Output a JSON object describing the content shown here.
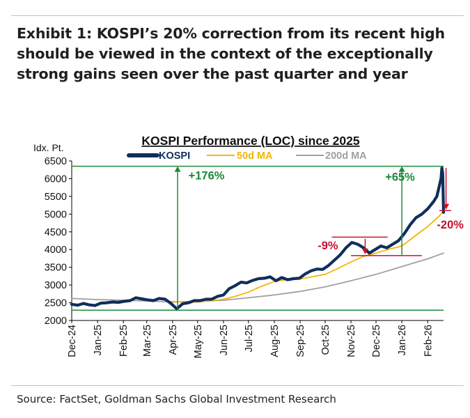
{
  "exhibit_title": "Exhibit 1: KOSPI’s 20% correction from its recent high should be viewed in the context of the exceptionally strong gains seen over the past quarter and year",
  "source": "Source: FactSet, Goldman Sachs Global Investment Research",
  "colors": {
    "kospi": "#0f2e5a",
    "ma50": "#f2b705",
    "ma200": "#a0a0a0",
    "green": "#1e8a3a",
    "red": "#c8102e"
  },
  "chart_data": {
    "type": "line",
    "title": "KOSPI Performance (LOC) since 2025",
    "ylabel": "Idx. Pt.",
    "ylim": [
      2000,
      6500
    ],
    "yticks": [
      2000,
      2500,
      3000,
      3500,
      4000,
      4500,
      5000,
      5500,
      6000,
      6500
    ],
    "xlim": [
      "2024-12-01",
      "2026-02-20"
    ],
    "xticks": [
      {
        "date": "2024-12-01",
        "label": "Dec-24"
      },
      {
        "date": "2025-01-01",
        "label": "Jan-25"
      },
      {
        "date": "2025-02-01",
        "label": "Feb-25"
      },
      {
        "date": "2025-03-01",
        "label": "Mar-25"
      },
      {
        "date": "2025-04-01",
        "label": "Apr-25"
      },
      {
        "date": "2025-05-01",
        "label": "May-25"
      },
      {
        "date": "2025-06-01",
        "label": "Jun-25"
      },
      {
        "date": "2025-07-01",
        "label": "Jul-25"
      },
      {
        "date": "2025-08-01",
        "label": "Aug-25"
      },
      {
        "date": "2025-09-01",
        "label": "Sep-25"
      },
      {
        "date": "2025-10-01",
        "label": "Oct-25"
      },
      {
        "date": "2025-11-01",
        "label": "Nov-25"
      },
      {
        "date": "2025-12-01",
        "label": "Dec-25"
      },
      {
        "date": "2026-01-01",
        "label": "Jan-26"
      },
      {
        "date": "2026-02-01",
        "label": "Feb-26"
      }
    ],
    "grid": false,
    "legend_position": "top",
    "series": [
      {
        "name": "KOSPI",
        "color": "#0f2e5a",
        "points": [
          [
            "2024-12-01",
            2455
          ],
          [
            "2024-12-08",
            2430
          ],
          [
            "2024-12-15",
            2480
          ],
          [
            "2024-12-22",
            2440
          ],
          [
            "2024-12-29",
            2420
          ],
          [
            "2025-01-05",
            2490
          ],
          [
            "2025-01-12",
            2500
          ],
          [
            "2025-01-19",
            2520
          ],
          [
            "2025-01-26",
            2510
          ],
          [
            "2025-02-02",
            2540
          ],
          [
            "2025-02-09",
            2560
          ],
          [
            "2025-02-16",
            2640
          ],
          [
            "2025-02-23",
            2610
          ],
          [
            "2025-03-02",
            2580
          ],
          [
            "2025-03-09",
            2560
          ],
          [
            "2025-03-16",
            2620
          ],
          [
            "2025-03-23",
            2600
          ],
          [
            "2025-03-30",
            2480
          ],
          [
            "2025-04-06",
            2330
          ],
          [
            "2025-04-13",
            2470
          ],
          [
            "2025-04-20",
            2500
          ],
          [
            "2025-04-27",
            2560
          ],
          [
            "2025-05-04",
            2560
          ],
          [
            "2025-05-11",
            2600
          ],
          [
            "2025-05-18",
            2600
          ],
          [
            "2025-05-25",
            2680
          ],
          [
            "2025-06-01",
            2720
          ],
          [
            "2025-06-08",
            2900
          ],
          [
            "2025-06-15",
            2980
          ],
          [
            "2025-06-22",
            3080
          ],
          [
            "2025-06-29",
            3060
          ],
          [
            "2025-07-06",
            3130
          ],
          [
            "2025-07-13",
            3180
          ],
          [
            "2025-07-20",
            3190
          ],
          [
            "2025-07-27",
            3230
          ],
          [
            "2025-08-03",
            3120
          ],
          [
            "2025-08-10",
            3210
          ],
          [
            "2025-08-17",
            3150
          ],
          [
            "2025-08-24",
            3180
          ],
          [
            "2025-08-31",
            3190
          ],
          [
            "2025-09-07",
            3310
          ],
          [
            "2025-09-14",
            3400
          ],
          [
            "2025-09-21",
            3450
          ],
          [
            "2025-09-28",
            3440
          ],
          [
            "2025-10-05",
            3550
          ],
          [
            "2025-10-12",
            3700
          ],
          [
            "2025-10-19",
            3850
          ],
          [
            "2025-10-26",
            4050
          ],
          [
            "2025-11-02",
            4200
          ],
          [
            "2025-11-09",
            4150
          ],
          [
            "2025-11-16",
            4050
          ],
          [
            "2025-11-23",
            3900
          ],
          [
            "2025-11-30",
            4000
          ],
          [
            "2025-12-07",
            4100
          ],
          [
            "2025-12-14",
            4050
          ],
          [
            "2025-12-21",
            4150
          ],
          [
            "2025-12-28",
            4250
          ],
          [
            "2026-01-04",
            4450
          ],
          [
            "2026-01-11",
            4700
          ],
          [
            "2026-01-18",
            4900
          ],
          [
            "2026-01-25",
            5000
          ],
          [
            "2026-02-01",
            5150
          ],
          [
            "2026-02-08",
            5350
          ],
          [
            "2026-02-12",
            5500
          ],
          [
            "2026-02-15",
            5800
          ],
          [
            "2026-02-17",
            6000
          ],
          [
            "2026-02-18",
            6300
          ],
          [
            "2026-02-19",
            6150
          ],
          [
            "2026-02-20",
            5050
          ]
        ]
      },
      {
        "name": "50d MA",
        "color": "#f2b705",
        "points": [
          [
            "2025-03-25",
            2540
          ],
          [
            "2025-04-15",
            2520
          ],
          [
            "2025-05-01",
            2520
          ],
          [
            "2025-05-15",
            2550
          ],
          [
            "2025-06-01",
            2600
          ],
          [
            "2025-06-15",
            2680
          ],
          [
            "2025-07-01",
            2800
          ],
          [
            "2025-07-15",
            2950
          ],
          [
            "2025-08-01",
            3100
          ],
          [
            "2025-08-15",
            3150
          ],
          [
            "2025-09-01",
            3170
          ],
          [
            "2025-09-15",
            3230
          ],
          [
            "2025-10-01",
            3300
          ],
          [
            "2025-10-15",
            3450
          ],
          [
            "2025-11-01",
            3650
          ],
          [
            "2025-11-15",
            3800
          ],
          [
            "2025-12-01",
            3900
          ],
          [
            "2025-12-15",
            4000
          ],
          [
            "2026-01-01",
            4100
          ],
          [
            "2026-01-15",
            4350
          ],
          [
            "2026-02-01",
            4650
          ],
          [
            "2026-02-15",
            4950
          ],
          [
            "2026-02-20",
            5100
          ]
        ]
      },
      {
        "name": "200d MA",
        "color": "#a0a0a0",
        "points": [
          [
            "2024-12-01",
            2620
          ],
          [
            "2025-01-01",
            2590
          ],
          [
            "2025-02-01",
            2570
          ],
          [
            "2025-03-01",
            2550
          ],
          [
            "2025-04-01",
            2520
          ],
          [
            "2025-05-01",
            2540
          ],
          [
            "2025-06-01",
            2570
          ],
          [
            "2025-07-01",
            2640
          ],
          [
            "2025-08-01",
            2720
          ],
          [
            "2025-09-01",
            2820
          ],
          [
            "2025-10-01",
            2950
          ],
          [
            "2025-11-01",
            3120
          ],
          [
            "2025-12-01",
            3300
          ],
          [
            "2026-01-01",
            3520
          ],
          [
            "2026-02-01",
            3740
          ],
          [
            "2026-02-20",
            3900
          ]
        ]
      }
    ],
    "reference_lines": [
      {
        "y": 6350,
        "from": "2024-12-01",
        "to": "2026-02-20"
      },
      {
        "y": 2290,
        "from": "2024-12-01",
        "to": "2026-02-20"
      }
    ],
    "annotations": [
      {
        "text": "+176%",
        "color": "#1e8a3a",
        "x": "2025-04-20",
        "y": 5980
      },
      {
        "text": "+65%",
        "color": "#1e8a3a",
        "x": "2025-12-12",
        "y": 5940
      },
      {
        "text": "-9%",
        "color": "#c8102e",
        "x": "2025-09-22",
        "y": 4000
      },
      {
        "text": "-20%",
        "color": "#c8102e",
        "x": "2026-02-12",
        "y": 4590
      }
    ],
    "arrows": [
      {
        "color": "#1e8a3a",
        "x": "2025-04-07",
        "from_y": 2290,
        "to_y": 6350
      },
      {
        "color": "#1e8a3a",
        "x": "2026-01-01",
        "from_y": 3850,
        "to_y": 6350
      },
      {
        "color": "#c8102e",
        "x": "2025-11-18",
        "from_y": 4300,
        "to_y": 3870
      },
      {
        "color": "#c8102e",
        "x": "2026-02-23",
        "from_y": 6300,
        "to_y": 5130
      }
    ],
    "marker_lines": [
      {
        "color": "#c8102e",
        "y": 4350,
        "from": "2025-10-09",
        "to": "2025-12-15"
      },
      {
        "color": "#c8102e",
        "y": 3830,
        "from": "2025-11-01",
        "to": "2026-01-25"
      },
      {
        "color": "#c8102e",
        "y": 5100,
        "from": "2026-02-15",
        "to": "2026-03-01"
      }
    ]
  }
}
